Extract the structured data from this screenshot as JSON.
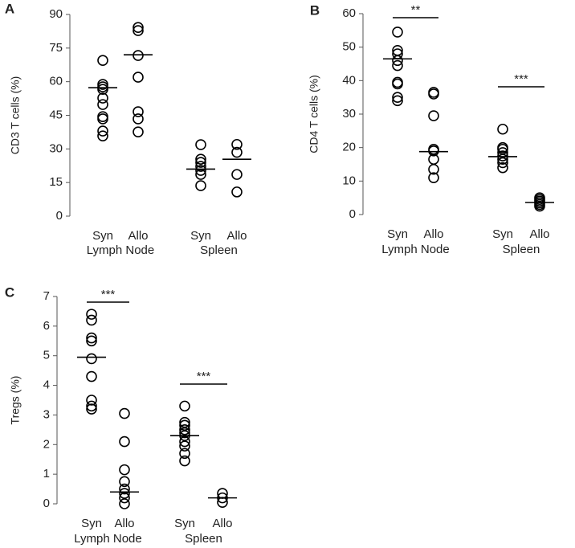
{
  "chart_data": [
    {
      "type": "dot",
      "panel_label": "A",
      "ylabel": "CD3 T cells (%)",
      "categories": [
        "Syn",
        "Allo",
        "Syn",
        "Allo"
      ],
      "groups": [
        "Lymph Node",
        "Spleen"
      ],
      "points": [
        [
          69.5,
          58.8,
          57.7,
          56.6,
          52.7,
          49.8,
          44.4,
          43.4,
          38,
          35.8
        ],
        [
          84.2,
          82.8,
          71.7,
          62,
          46.6,
          43.4,
          37.6
        ],
        [
          31.9,
          25.4,
          24,
          22.2,
          20.4,
          18.6,
          13.6
        ],
        [
          32,
          28.5,
          18.6,
          10.8
        ]
      ],
      "medians": [
        57.3,
        72,
        21,
        25.4
      ],
      "ylim": [
        0,
        90
      ],
      "yticks": [
        0,
        15,
        30,
        45,
        60,
        75,
        90
      ],
      "significance": [],
      "color": "#000000"
    },
    {
      "type": "dot",
      "panel_label": "B",
      "ylabel": "CD4 T cells (%)",
      "categories": [
        "Syn",
        "Allo",
        "Syn",
        "Allo"
      ],
      "groups": [
        "Lymph Node",
        "Spleen"
      ],
      "points": [
        [
          54.5,
          49,
          48,
          46,
          44.5,
          39.5,
          39,
          35,
          34
        ],
        [
          36.5,
          36,
          29.5,
          19.5,
          19,
          16.5,
          13.5,
          11
        ],
        [
          25.5,
          20,
          19.5,
          18.5,
          17.5,
          16.5,
          15.5,
          14
        ],
        [
          5,
          4.5,
          4,
          3.5,
          3,
          2.5
        ]
      ],
      "medians": [
        46.5,
        18.8,
        17.3,
        3.6
      ],
      "ylim": [
        0,
        60
      ],
      "yticks": [
        0,
        10,
        20,
        30,
        40,
        50,
        60
      ],
      "significance": [
        "**",
        "***"
      ],
      "color": "#000000"
    },
    {
      "type": "dot",
      "panel_label": "C",
      "ylabel": "Tregs (%)",
      "categories": [
        "Syn",
        "Allo",
        "Syn",
        "Allo"
      ],
      "groups": [
        "Lymph Node",
        "Spleen"
      ],
      "points": [
        [
          6.4,
          6.2,
          5.6,
          5.5,
          4.9,
          4.3,
          3.5,
          3.3,
          3.2
        ],
        [
          3.05,
          2.1,
          1.15,
          0.75,
          0.5,
          0.35,
          0.2,
          0
        ],
        [
          3.3,
          2.75,
          2.65,
          2.5,
          2.4,
          2.3,
          2.1,
          1.95,
          1.7,
          1.45
        ],
        [
          0.35,
          0.2,
          0.05
        ]
      ],
      "medians": [
        4.95,
        0.4,
        2.3,
        0.2
      ],
      "ylim": [
        0,
        7
      ],
      "yticks": [
        0,
        1,
        2,
        3,
        4,
        5,
        6,
        7
      ],
      "significance": [
        "***",
        "***"
      ],
      "color": "#000000"
    }
  ]
}
